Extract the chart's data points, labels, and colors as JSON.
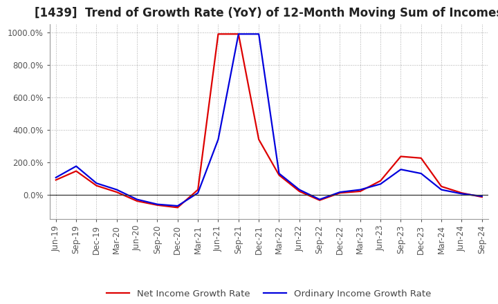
{
  "title": "[1439]  Trend of Growth Rate (YoY) of 12-Month Moving Sum of Incomes",
  "ylim": [
    -150,
    1050
  ],
  "yticks": [
    0,
    200,
    400,
    600,
    800,
    1000
  ],
  "ytick_labels": [
    "0.0%",
    "200.0%",
    "400.0%",
    "600.0%",
    "800.0%",
    "1000.0%"
  ],
  "x_labels": [
    "Jun-19",
    "Sep-19",
    "Dec-19",
    "Mar-20",
    "Jun-20",
    "Sep-20",
    "Dec-20",
    "Mar-21",
    "Jun-21",
    "Sep-21",
    "Dec-21",
    "Mar-22",
    "Jun-22",
    "Sep-22",
    "Dec-22",
    "Mar-23",
    "Jun-23",
    "Sep-23",
    "Dec-23",
    "Mar-24",
    "Jun-24",
    "Sep-24"
  ],
  "ordinary_income": [
    105,
    175,
    70,
    30,
    -30,
    -60,
    -70,
    10,
    340,
    990,
    990,
    130,
    30,
    -30,
    15,
    30,
    65,
    155,
    130,
    30,
    5,
    -10
  ],
  "net_income": [
    90,
    145,
    55,
    15,
    -40,
    -65,
    -80,
    30,
    990,
    990,
    340,
    120,
    20,
    -35,
    10,
    20,
    85,
    235,
    225,
    50,
    10,
    -15
  ],
  "line_color_ordinary": "#0000dd",
  "line_color_net": "#dd0000",
  "background_color": "#ffffff",
  "grid_color": "#aaaaaa",
  "grid_style": "dotted",
  "title_fontsize": 12,
  "tick_fontsize": 8.5,
  "legend_fontsize": 9.5
}
